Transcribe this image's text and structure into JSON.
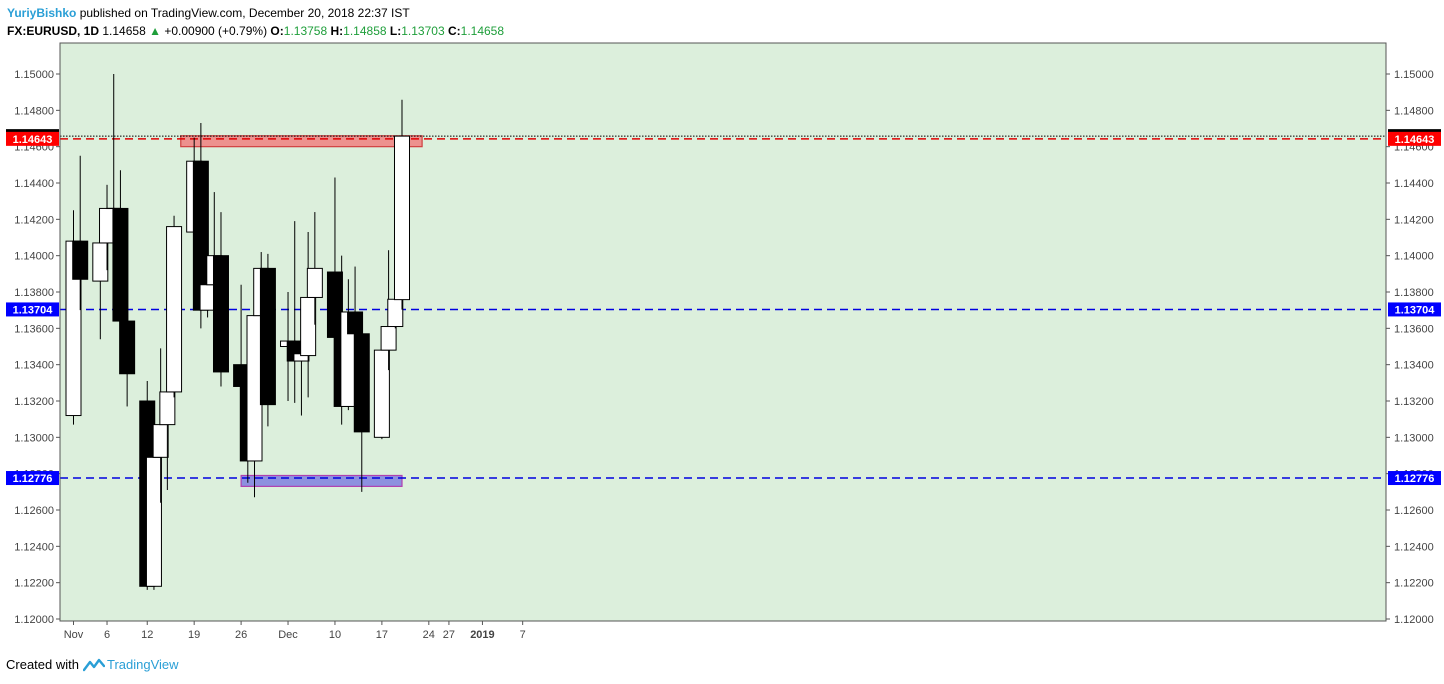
{
  "header": {
    "author": "YuriyBishko",
    "published_text": "published on TradingView.com, December 20, 2018 22:37 IST",
    "symbol": "FX:EURUSD, 1D",
    "last": "1.14658",
    "change": "+0.00900 (+0.79%)",
    "o_label": "O:",
    "o_value": "1.13758",
    "h_label": "H:",
    "h_value": "1.14858",
    "l_label": "L:",
    "l_value": "1.13703",
    "c_label": "C:",
    "c_value": "1.14658"
  },
  "footer": {
    "created_with": "Created with",
    "brand": "TradingView"
  },
  "colors": {
    "plot_bg": "#dcefdc",
    "red_zone": "#f08080",
    "blue_zone": "#7f7fdf",
    "red_line": "#e00000",
    "blue_line": "#0000e0",
    "current_badge": "#000000"
  },
  "chart_data": {
    "type": "candlestick",
    "ylim": [
      1.12,
      1.15
    ],
    "y_ticks": [
      "1.12000",
      "1.12200",
      "1.12400",
      "1.12600",
      "1.12800",
      "1.13000",
      "1.13200",
      "1.13400",
      "1.13600",
      "1.13800",
      "1.14000",
      "1.14200",
      "1.14400",
      "1.14600",
      "1.14800",
      "1.15000"
    ],
    "x_ticks": [
      {
        "label": "Nov",
        "date": "2018-11-01"
      },
      {
        "label": "6",
        "date": "2018-11-06"
      },
      {
        "label": "12",
        "date": "2018-11-12"
      },
      {
        "label": "19",
        "date": "2018-11-19"
      },
      {
        "label": "26",
        "date": "2018-11-26"
      },
      {
        "label": "Dec",
        "date": "2018-12-03"
      },
      {
        "label": "10",
        "date": "2018-12-10"
      },
      {
        "label": "17",
        "date": "2018-12-17"
      },
      {
        "label": "24",
        "date": "2018-12-24"
      },
      {
        "label": "27",
        "date": "2018-12-27"
      },
      {
        "label": "2019",
        "date": "2019-01-01",
        "bold": true
      },
      {
        "label": "7",
        "date": "2019-01-07"
      }
    ],
    "candles": [
      {
        "date": "2018-11-01",
        "o": 1.1312,
        "h": 1.1425,
        "l": 1.1307,
        "c": 1.1408
      },
      {
        "date": "2018-11-02",
        "o": 1.1408,
        "h": 1.1455,
        "l": 1.137,
        "c": 1.1387
      },
      {
        "date": "2018-11-05",
        "o": 1.1386,
        "h": 1.1425,
        "l": 1.1354,
        "c": 1.1407
      },
      {
        "date": "2018-11-06",
        "o": 1.1407,
        "h": 1.1439,
        "l": 1.1392,
        "c": 1.1426
      },
      {
        "date": "2018-11-07",
        "o": 1.1426,
        "h": 1.15,
        "l": 1.1395,
        "c": 1.1426
      },
      {
        "date": "2018-11-08",
        "o": 1.1426,
        "h": 1.1447,
        "l": 1.1352,
        "c": 1.1364
      },
      {
        "date": "2018-11-09",
        "o": 1.1364,
        "h": 1.137,
        "l": 1.1317,
        "c": 1.1335
      },
      {
        "date": "2018-11-12",
        "o": 1.132,
        "h": 1.1331,
        "l": 1.1216,
        "c": 1.1218
      },
      {
        "date": "2018-11-13",
        "o": 1.1218,
        "h": 1.1294,
        "l": 1.1216,
        "c": 1.1289
      },
      {
        "date": "2018-11-14",
        "o": 1.1289,
        "h": 1.1349,
        "l": 1.1264,
        "c": 1.1307
      },
      {
        "date": "2018-11-15",
        "o": 1.1307,
        "h": 1.1363,
        "l": 1.1271,
        "c": 1.1325
      },
      {
        "date": "2018-11-16",
        "o": 1.1325,
        "h": 1.1422,
        "l": 1.1322,
        "c": 1.1416
      },
      {
        "date": "2018-11-19",
        "o": 1.1413,
        "h": 1.1465,
        "l": 1.1394,
        "c": 1.1452
      },
      {
        "date": "2018-11-20",
        "o": 1.1452,
        "h": 1.1473,
        "l": 1.136,
        "c": 1.137
      },
      {
        "date": "2018-11-21",
        "o": 1.137,
        "h": 1.1425,
        "l": 1.1366,
        "c": 1.1384
      },
      {
        "date": "2018-11-22",
        "o": 1.1384,
        "h": 1.1435,
        "l": 1.1381,
        "c": 1.14
      },
      {
        "date": "2018-11-23",
        "o": 1.14,
        "h": 1.1424,
        "l": 1.1328,
        "c": 1.1336
      },
      {
        "date": "2018-11-26",
        "o": 1.134,
        "h": 1.1384,
        "l": 1.1327,
        "c": 1.1328
      },
      {
        "date": "2018-11-27",
        "o": 1.1328,
        "h": 1.1344,
        "l": 1.1275,
        "c": 1.1287
      },
      {
        "date": "2018-11-28",
        "o": 1.1287,
        "h": 1.1388,
        "l": 1.1267,
        "c": 1.1367
      },
      {
        "date": "2018-11-29",
        "o": 1.1367,
        "h": 1.1402,
        "l": 1.135,
        "c": 1.1393
      },
      {
        "date": "2018-11-30",
        "o": 1.1393,
        "h": 1.1401,
        "l": 1.1306,
        "c": 1.1318
      },
      {
        "date": "2018-12-03",
        "o": 1.135,
        "h": 1.138,
        "l": 1.132,
        "c": 1.1353
      },
      {
        "date": "2018-12-04",
        "o": 1.1353,
        "h": 1.1419,
        "l": 1.1319,
        "c": 1.1342
      },
      {
        "date": "2018-12-05",
        "o": 1.1342,
        "h": 1.1363,
        "l": 1.1312,
        "c": 1.1346
      },
      {
        "date": "2018-12-06",
        "o": 1.1345,
        "h": 1.1413,
        "l": 1.1322,
        "c": 1.1377
      },
      {
        "date": "2018-12-07",
        "o": 1.1377,
        "h": 1.1424,
        "l": 1.1362,
        "c": 1.1393
      },
      {
        "date": "2018-12-10",
        "o": 1.1391,
        "h": 1.1443,
        "l": 1.1352,
        "c": 1.1355
      },
      {
        "date": "2018-12-11",
        "o": 1.1355,
        "h": 1.14,
        "l": 1.1307,
        "c": 1.1317
      },
      {
        "date": "2018-12-12",
        "o": 1.1317,
        "h": 1.1387,
        "l": 1.1315,
        "c": 1.1369
      },
      {
        "date": "2018-12-13",
        "o": 1.1369,
        "h": 1.1394,
        "l": 1.1332,
        "c": 1.1357
      },
      {
        "date": "2018-12-14",
        "o": 1.1357,
        "h": 1.1363,
        "l": 1.127,
        "c": 1.1303
      },
      {
        "date": "2018-12-17",
        "o": 1.13,
        "h": 1.1357,
        "l": 1.1299,
        "c": 1.1348
      },
      {
        "date": "2018-12-18",
        "o": 1.1348,
        "h": 1.1403,
        "l": 1.1337,
        "c": 1.1361
      },
      {
        "date": "2018-12-19",
        "o": 1.1361,
        "h": 1.144,
        "l": 1.136,
        "c": 1.1376
      },
      {
        "date": "2018-12-20",
        "o": 1.13758,
        "h": 1.14858,
        "l": 1.13703,
        "c": 1.14658
      }
    ],
    "levels": [
      {
        "value": 1.14658,
        "label": "1.14658",
        "style": "dotted",
        "color": "#000000",
        "badge": "#000000"
      },
      {
        "value": 1.14643,
        "label": "1.14643",
        "style": "dashed",
        "color": "#e00000",
        "badge": "#ff0000"
      },
      {
        "value": 1.13704,
        "label": "1.13704",
        "style": "dashed",
        "color": "#0000e0",
        "badge": "#0000ff"
      },
      {
        "value": 1.12776,
        "label": "1.12776",
        "style": "dashed",
        "color": "#0000e0",
        "badge": "#0000ff"
      }
    ],
    "zones": [
      {
        "name": "resistance-zone",
        "from_date": "2018-11-17",
        "to_date": "2018-12-23",
        "y_low": 1.146,
        "y_high": 1.1466,
        "color": "#f08080",
        "stroke": "#d04040"
      },
      {
        "name": "support-zone",
        "from_date": "2018-11-26",
        "to_date": "2018-12-20",
        "y_low": 1.1273,
        "y_high": 1.1279,
        "color": "#7f7fdf",
        "stroke": "#b040b0"
      }
    ]
  }
}
